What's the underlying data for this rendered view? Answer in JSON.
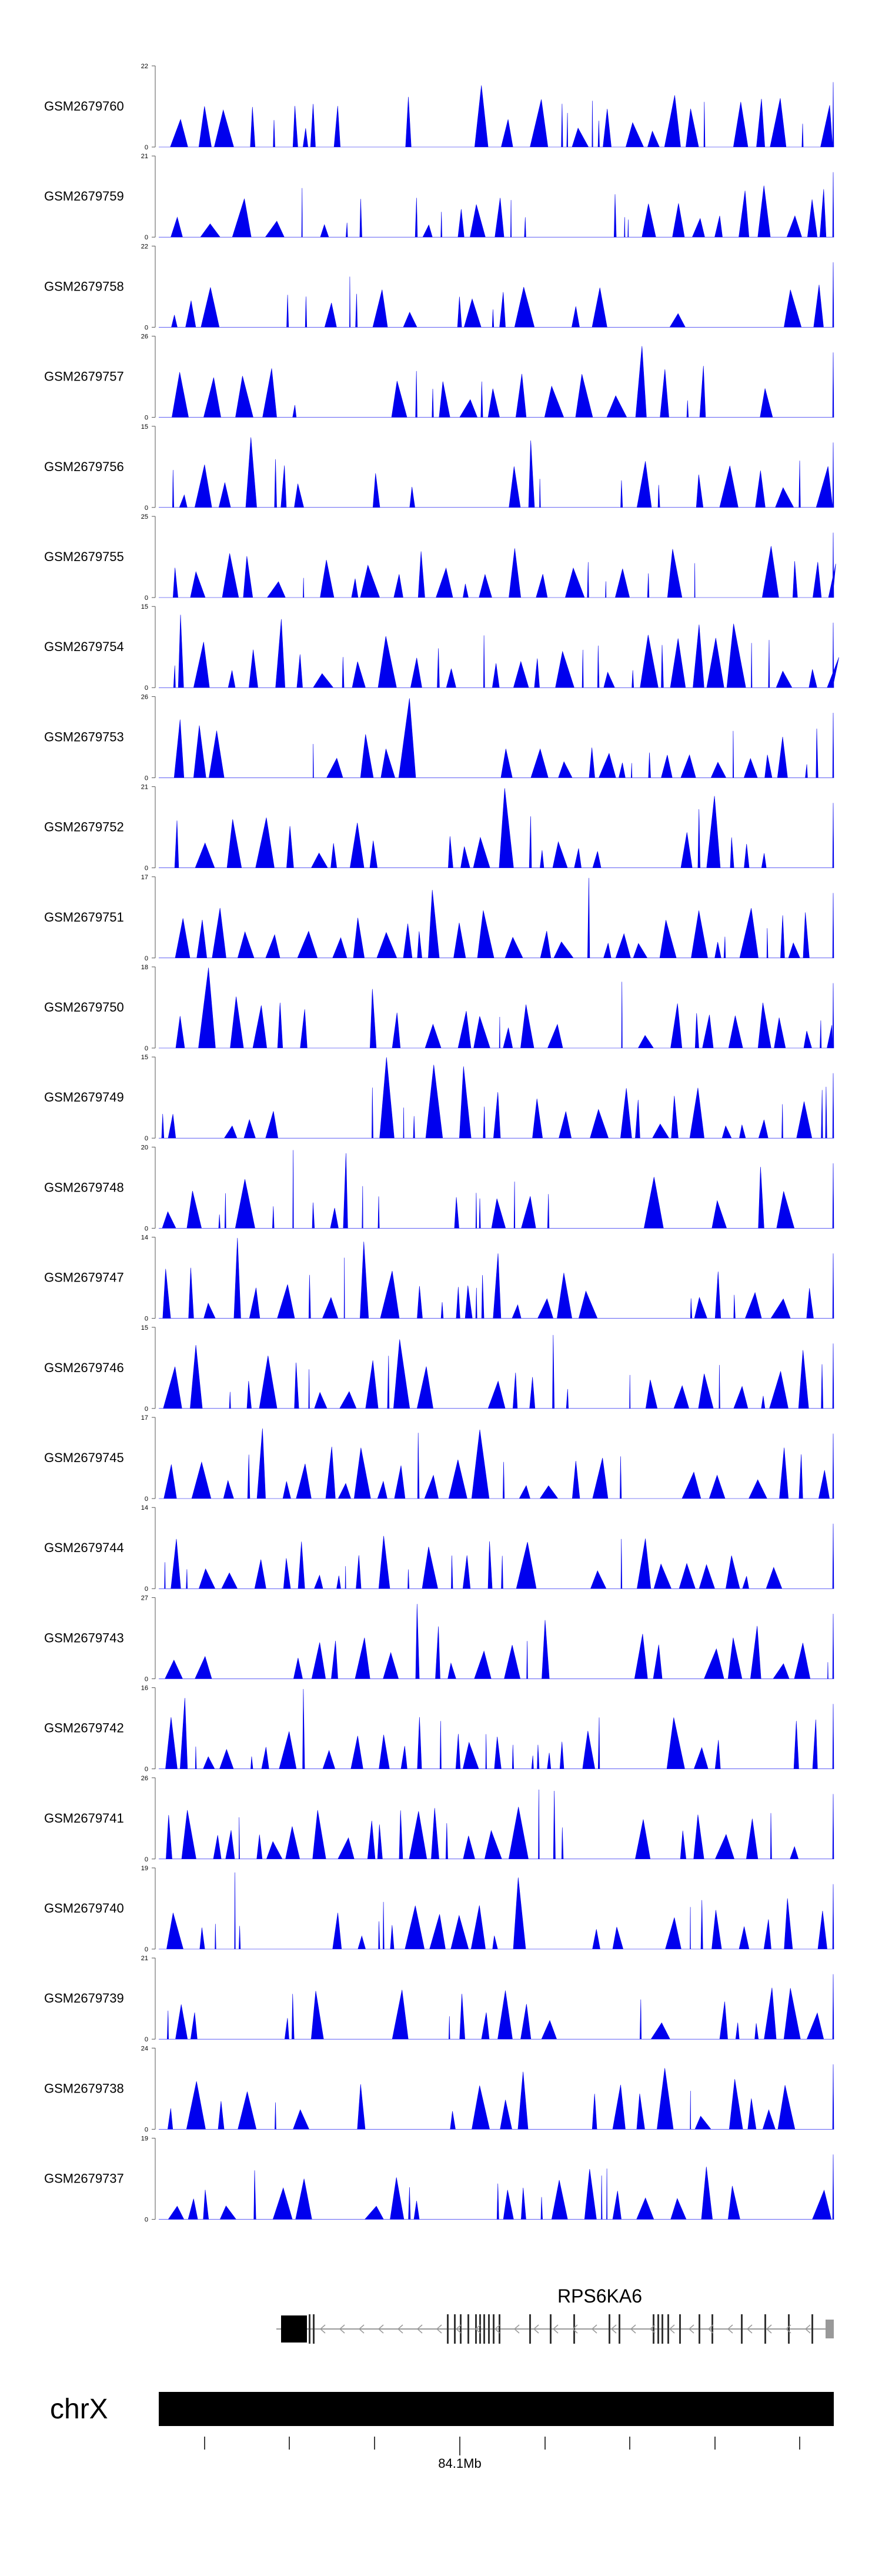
{
  "chart_data": {
    "type": "area",
    "title": "",
    "chromosome": "chrX",
    "gene": "RPS6KA6",
    "position_label": "84.1Mb",
    "x_range_labels": [
      "84.1Mb"
    ],
    "series_color": "#0000ee",
    "tracks": [
      {
        "name": "GSM2679760",
        "ymax": 22,
        "ymin": 0
      },
      {
        "name": "GSM2679759",
        "ymax": 21,
        "ymin": 0
      },
      {
        "name": "GSM2679758",
        "ymax": 22,
        "ymin": 0
      },
      {
        "name": "GSM2679757",
        "ymax": 26,
        "ymin": 0
      },
      {
        "name": "GSM2679756",
        "ymax": 15,
        "ymin": 0
      },
      {
        "name": "GSM2679755",
        "ymax": 25,
        "ymin": 0
      },
      {
        "name": "GSM2679754",
        "ymax": 15,
        "ymin": 0
      },
      {
        "name": "GSM2679753",
        "ymax": 26,
        "ymin": 0
      },
      {
        "name": "GSM2679752",
        "ymax": 21,
        "ymin": 0
      },
      {
        "name": "GSM2679751",
        "ymax": 17,
        "ymin": 0
      },
      {
        "name": "GSM2679750",
        "ymax": 18,
        "ymin": 0
      },
      {
        "name": "GSM2679749",
        "ymax": 15,
        "ymin": 0
      },
      {
        "name": "GSM2679748",
        "ymax": 20,
        "ymin": 0
      },
      {
        "name": "GSM2679747",
        "ymax": 14,
        "ymin": 0
      },
      {
        "name": "GSM2679746",
        "ymax": 15,
        "ymin": 0
      },
      {
        "name": "GSM2679745",
        "ymax": 17,
        "ymin": 0
      },
      {
        "name": "GSM2679744",
        "ymax": 14,
        "ymin": 0
      },
      {
        "name": "GSM2679743",
        "ymax": 27,
        "ymin": 0
      },
      {
        "name": "GSM2679742",
        "ymax": 16,
        "ymin": 0
      },
      {
        "name": "GSM2679741",
        "ymax": 26,
        "ymin": 0
      },
      {
        "name": "GSM2679740",
        "ymax": 19,
        "ymin": 0
      },
      {
        "name": "GSM2679739",
        "ymax": 21,
        "ymin": 0
      },
      {
        "name": "GSM2679738",
        "ymax": 24,
        "ymin": 0
      },
      {
        "name": "GSM2679737",
        "ymax": 19,
        "ymin": 0
      }
    ]
  }
}
